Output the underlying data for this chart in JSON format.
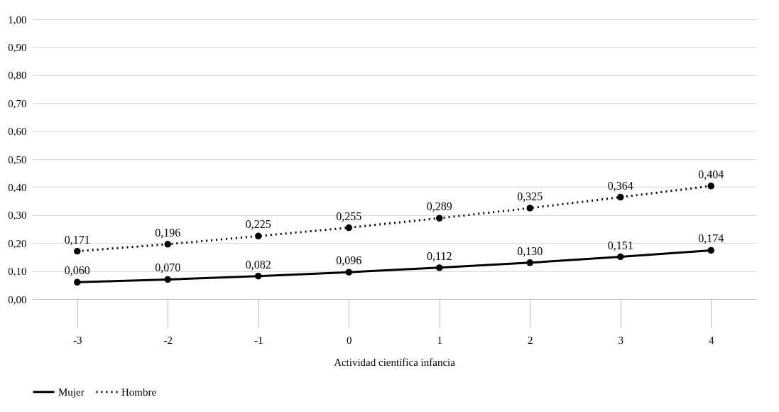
{
  "chart_data": {
    "type": "line",
    "xlabel": "Actividad científica infancia",
    "categories": [
      "-3",
      "-2",
      "-1",
      "0",
      "1",
      "2",
      "3",
      "4"
    ],
    "series": [
      {
        "name": "Mujer",
        "color": "#000000",
        "line_style": "solid",
        "values": [
          0.06,
          0.07,
          0.082,
          0.096,
          0.112,
          0.13,
          0.151,
          0.174
        ],
        "value_labels": [
          "0,060",
          "0,070",
          "0,082",
          "0,096",
          "0,112",
          "0,130",
          "0,151",
          "0,174"
        ]
      },
      {
        "name": "Hombre",
        "color": "#000000",
        "line_style": "dotted",
        "values": [
          0.171,
          0.196,
          0.225,
          0.255,
          0.289,
          0.325,
          0.364,
          0.404
        ],
        "value_labels": [
          "0,171",
          "0,196",
          "0,225",
          "0,255",
          "0,289",
          "0,325",
          "0,364",
          "0,404"
        ]
      }
    ],
    "ylim": [
      0,
      1
    ],
    "yticks": [
      {
        "value": 0,
        "label": "0,00"
      },
      {
        "value": 0.1,
        "label": "0,10"
      },
      {
        "value": 0.2,
        "label": "0,20"
      },
      {
        "value": 0.3,
        "label": "0,30"
      },
      {
        "value": 0.4,
        "label": "0,40"
      },
      {
        "value": 0.5,
        "label": "0,50"
      },
      {
        "value": 0.6,
        "label": "0,60"
      },
      {
        "value": 0.7,
        "label": "0,70"
      },
      {
        "value": 0.8,
        "label": "0,80"
      },
      {
        "value": 0.9,
        "label": "0,90"
      },
      {
        "value": 1,
        "label": "1,00"
      }
    ],
    "grid": "y",
    "legend": "bottom",
    "marker": "circle"
  }
}
